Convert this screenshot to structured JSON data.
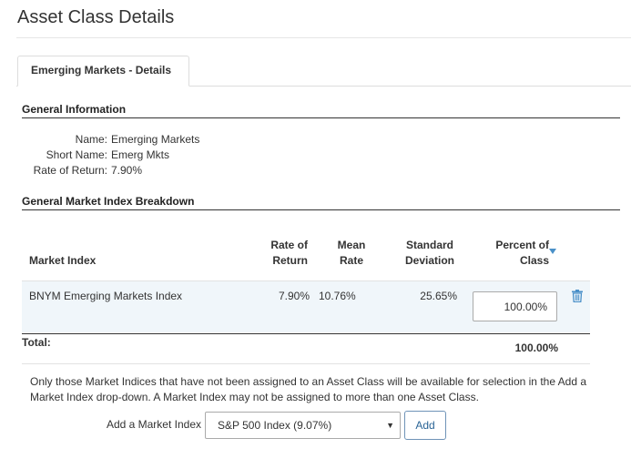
{
  "page": {
    "title": "Asset Class Details"
  },
  "tab": {
    "label": "Emerging Markets - Details"
  },
  "general_info": {
    "heading": "General Information",
    "rows": [
      {
        "label": "Name:",
        "value": "Emerging Markets"
      },
      {
        "label": "Short Name:",
        "value": "Emerg Mkts"
      },
      {
        "label": "Rate of Return:",
        "value": "7.90%"
      }
    ]
  },
  "breakdown": {
    "heading": "General Market Index Breakdown",
    "columns": {
      "market_index": "Market Index",
      "rate_of_return_1": "Rate of",
      "rate_of_return_2": "Return",
      "mean_rate_1": "Mean",
      "mean_rate_2": "Rate",
      "std_dev_1": "Standard",
      "std_dev_2": "Deviation",
      "percent_1": "Percent of",
      "percent_2": "Class"
    },
    "rows": [
      {
        "market_index": "BNYM Emerging Markets Index",
        "rate_of_return": "7.90%",
        "mean_rate": "10.76%",
        "std_dev": "25.65%",
        "percent_of_class": "100.00%"
      }
    ],
    "total_label": "Total:",
    "total_value": "100.00%",
    "sort_icon": "sort-desc-icon",
    "delete_icon": "trash-icon",
    "accent_color": "#4a90c8"
  },
  "note": "Only those Market Indices that have not been assigned to an Asset Class will be available for selection in the Add a Market Index drop-down. A Market Index may not be assigned to more than one Asset Class.",
  "add_index": {
    "label": "Add a Market Index",
    "selected": "S&P 500 Index (9.07%)",
    "button_label": "Add"
  }
}
